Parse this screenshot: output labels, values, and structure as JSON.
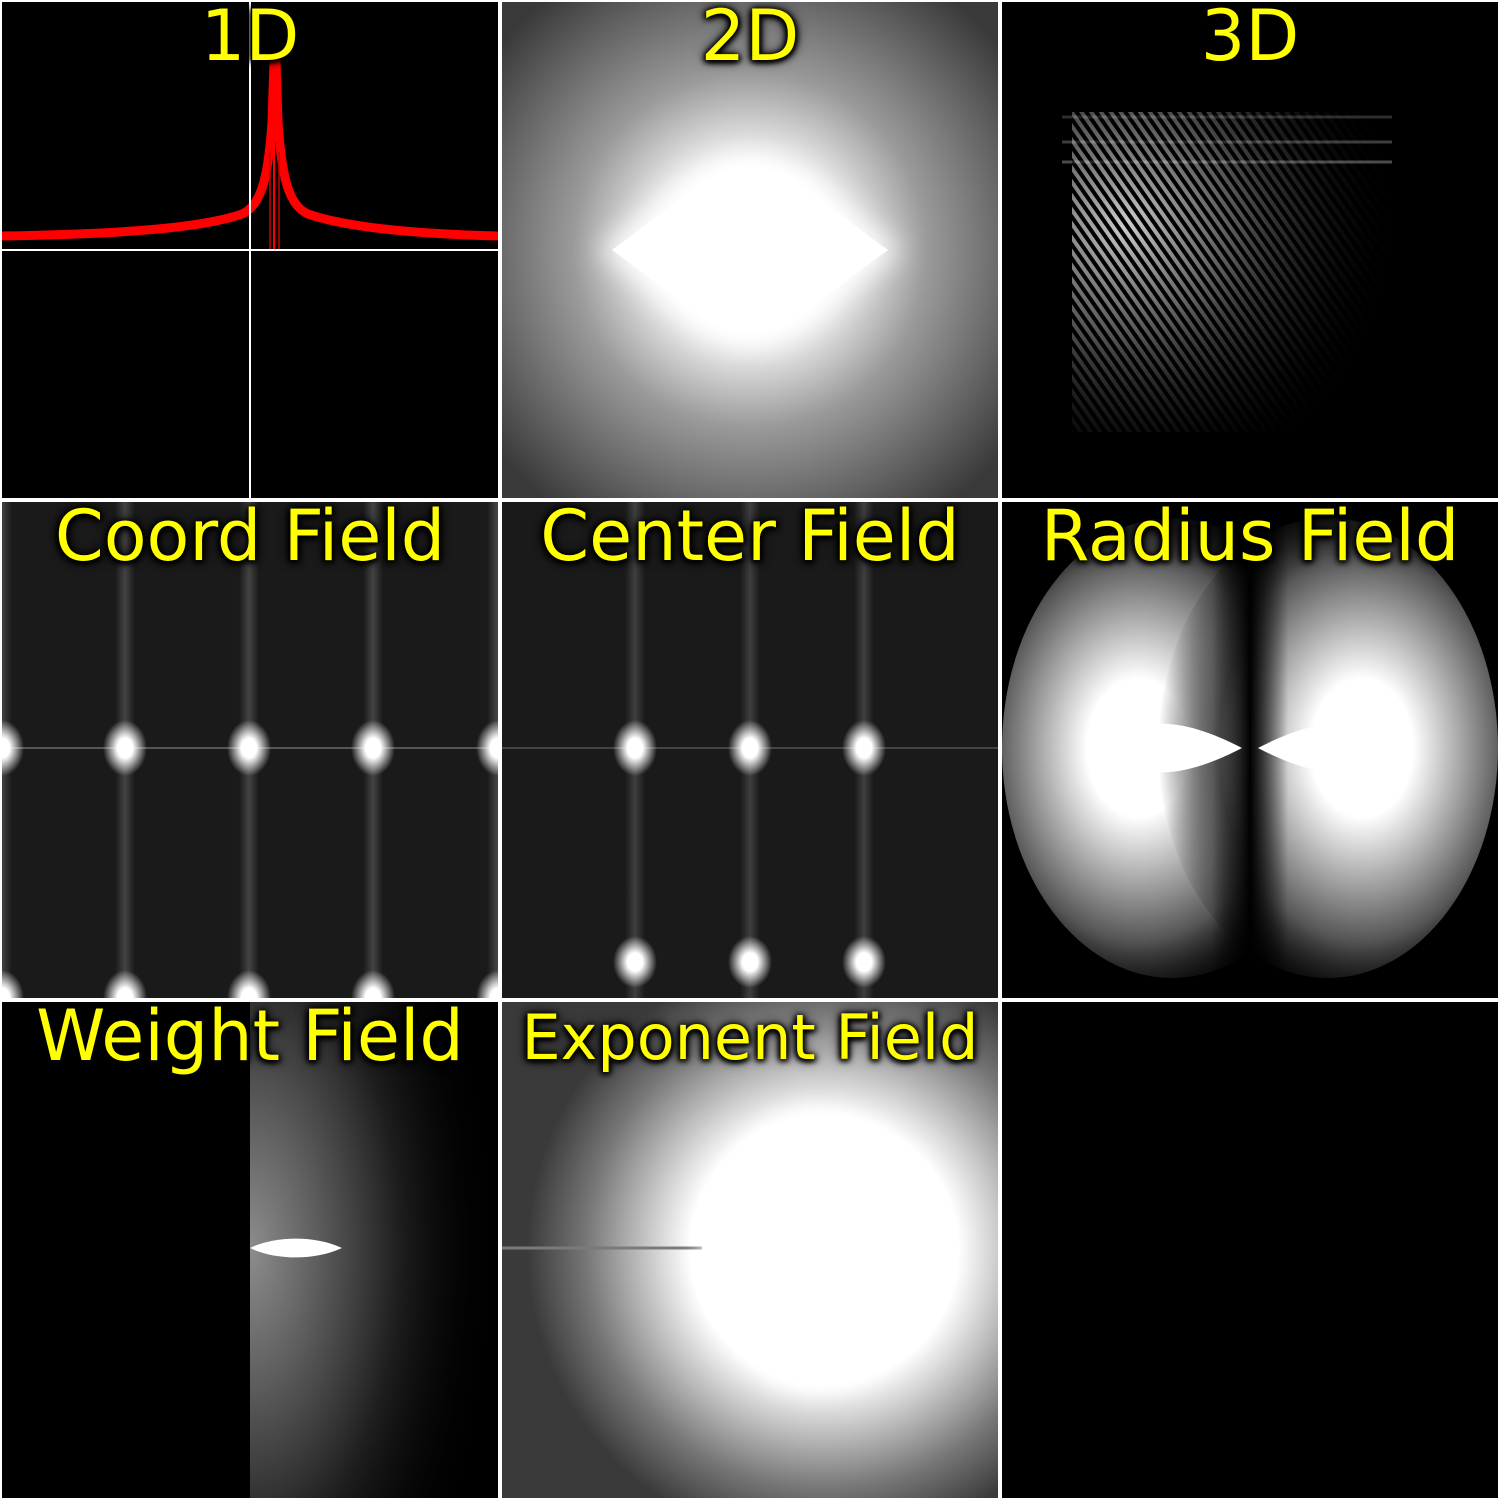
{
  "panels": [
    {
      "title": "1D",
      "bg": "#000000"
    },
    {
      "title": "2D",
      "bg": "#4a4a4a"
    },
    {
      "title": "3D",
      "bg": "#000000"
    },
    {
      "title": "Coord Field",
      "bg": "#1a1a1a"
    },
    {
      "title": "Center Field",
      "bg": "#1a1a1a"
    },
    {
      "title": "Radius Field",
      "bg": "#000000"
    },
    {
      "title": "Weight Field",
      "bg": "#000000"
    },
    {
      "title": "Exponent Field",
      "bg": "#3a3a3a"
    },
    {
      "title": "",
      "bg": "#000000"
    }
  ],
  "colors": {
    "label": "#ffff00",
    "curve": "#ff0000",
    "gridline": "#ffffff"
  }
}
